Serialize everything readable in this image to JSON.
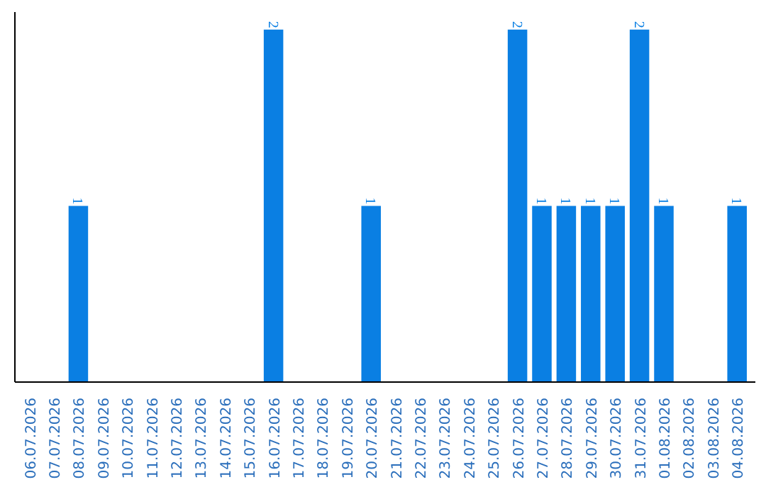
{
  "chart_data": {
    "type": "bar",
    "categories": [
      "06.07.2026",
      "07.07.2026",
      "08.07.2026",
      "09.07.2026",
      "10.07.2026",
      "11.07.2026",
      "12.07.2026",
      "13.07.2026",
      "14.07.2026",
      "15.07.2026",
      "16.07.2026",
      "17.07.2026",
      "18.07.2026",
      "19.07.2026",
      "20.07.2026",
      "21.07.2026",
      "22.07.2026",
      "23.07.2026",
      "24.07.2026",
      "25.07.2026",
      "26.07.2026",
      "27.07.2026",
      "28.07.2026",
      "29.07.2026",
      "30.07.2026",
      "31.07.2026",
      "01.08.2026",
      "02.08.2026",
      "03.08.2026",
      "04.08.2026"
    ],
    "values": [
      0,
      0,
      1,
      0,
      0,
      0,
      0,
      0,
      0,
      0,
      2,
      0,
      0,
      0,
      1,
      0,
      0,
      0,
      0,
      0,
      2,
      1,
      1,
      1,
      1,
      2,
      1,
      0,
      0,
      1
    ],
    "value_labels": [
      null,
      null,
      "1",
      null,
      null,
      null,
      null,
      null,
      null,
      null,
      "2",
      null,
      null,
      null,
      "1",
      null,
      null,
      null,
      null,
      null,
      "2",
      "1",
      "1",
      "1",
      "1",
      "2",
      "1",
      null,
      null,
      "1"
    ],
    "color": "#0a7fe3",
    "tick_labels": "x",
    "grid": false
  }
}
